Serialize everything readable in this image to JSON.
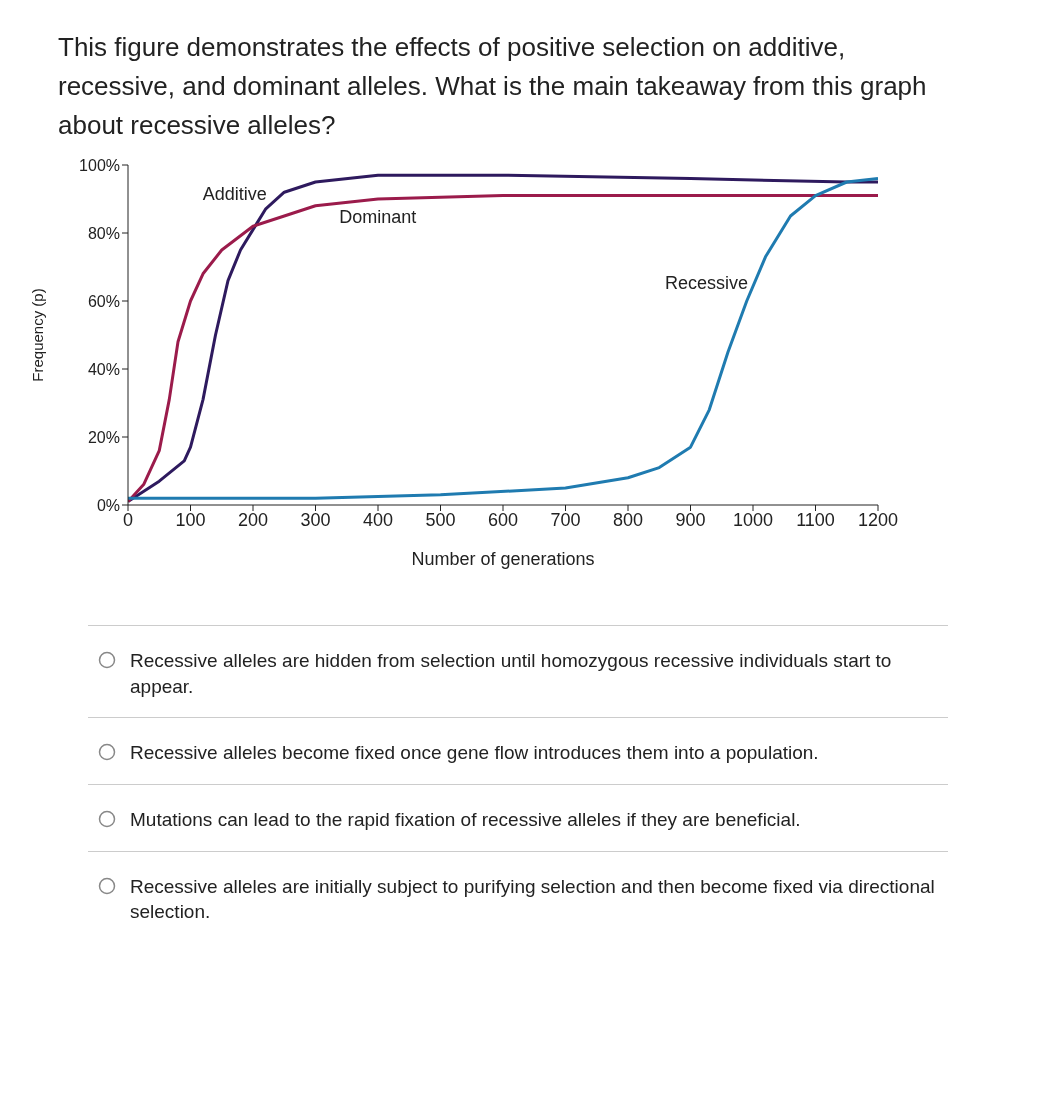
{
  "chart_data": {
    "type": "line",
    "title": "This figure demonstrates the effects of positive selection on additive, recessive, and dominant alleles. What is the main takeaway from this graph about recessive alleles?",
    "xlabel": "Number of generations",
    "ylabel": "Frequency (p)",
    "xlim": [
      0,
      1200
    ],
    "ylim": [
      0,
      100
    ],
    "xticks": [
      0,
      100,
      200,
      300,
      400,
      500,
      600,
      700,
      800,
      900,
      1000,
      1100,
      1200
    ],
    "yticks": [
      {
        "value": 0,
        "label": "0%"
      },
      {
        "value": 20,
        "label": "20%"
      },
      {
        "value": 40,
        "label": "40%"
      },
      {
        "value": 60,
        "label": "60%"
      },
      {
        "value": 80,
        "label": "80%"
      },
      {
        "value": 100,
        "label": "100%"
      }
    ],
    "grid": false,
    "legend": false,
    "marker": "none",
    "series": [
      {
        "color": "#2e1a5e",
        "x": [
          0,
          50,
          90,
          100,
          120,
          140,
          160,
          180,
          200,
          220,
          250,
          300,
          400,
          600,
          900,
          1150,
          1200
        ],
        "values": [
          1,
          7,
          13,
          17,
          31,
          50,
          66,
          75,
          81,
          87,
          92,
          95,
          97,
          97,
          96,
          95,
          95
        ]
      },
      {
        "color": "#9b1b4b",
        "x": [
          0,
          25,
          50,
          66,
          80,
          100,
          120,
          150,
          200,
          250,
          300,
          400,
          600,
          900,
          1200
        ],
        "values": [
          1,
          6,
          16,
          31,
          48,
          60,
          68,
          75,
          82,
          85,
          88,
          90,
          91,
          91,
          91
        ]
      },
      {
        "color": "#1f7bb0",
        "x": [
          0,
          300,
          500,
          700,
          800,
          850,
          900,
          930,
          960,
          990,
          1020,
          1060,
          1100,
          1150,
          1200
        ],
        "values": [
          2,
          2,
          3,
          5,
          8,
          11,
          17,
          28,
          45,
          60,
          73,
          85,
          91,
          95,
          96
        ]
      }
    ],
    "annotations": [
      {
        "text": "Additive",
        "x": 230,
        "y": 88
      },
      {
        "text": "Dominant",
        "x": 330,
        "y": 89
      },
      {
        "text": "Recessive",
        "x": 1000,
        "y": 62
      },
      "Recessive alleles are hidden from selection until homozygous recessive individuals start to appear.",
      "Recessive alleles become fixed once gene flow introduces them into a population.",
      "Mutations can lead to the rapid fixation of recessive alleles if they are beneficial.",
      "Recessive alleles are initially subject to purifying selection and then become fixed via directional selection."
    ]
  }
}
